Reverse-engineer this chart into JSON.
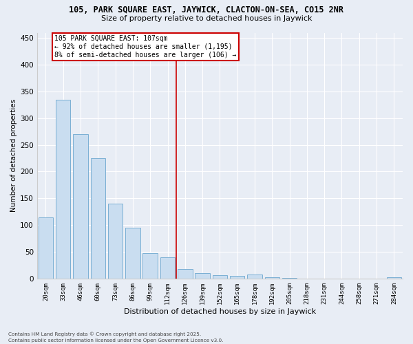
{
  "title1": "105, PARK SQUARE EAST, JAYWICK, CLACTON-ON-SEA, CO15 2NR",
  "title2": "Size of property relative to detached houses in Jaywick",
  "xlabel": "Distribution of detached houses by size in Jaywick",
  "ylabel": "Number of detached properties",
  "categories": [
    "20sqm",
    "33sqm",
    "46sqm",
    "60sqm",
    "73sqm",
    "86sqm",
    "99sqm",
    "112sqm",
    "126sqm",
    "139sqm",
    "152sqm",
    "165sqm",
    "178sqm",
    "192sqm",
    "205sqm",
    "218sqm",
    "231sqm",
    "244sqm",
    "258sqm",
    "271sqm",
    "284sqm"
  ],
  "values": [
    115,
    335,
    270,
    225,
    140,
    95,
    47,
    40,
    18,
    10,
    6,
    5,
    7,
    2,
    1,
    0,
    0,
    0,
    0,
    0,
    3
  ],
  "bar_color": "#c9ddf0",
  "bar_edge_color": "#7aafd4",
  "background_color": "#e8edf5",
  "grid_color": "#ffffff",
  "vline_x": 7.5,
  "vline_color": "#cc0000",
  "annotation_title": "105 PARK SQUARE EAST: 107sqm",
  "annotation_line1": "← 92% of detached houses are smaller (1,195)",
  "annotation_line2": "8% of semi-detached houses are larger (106) →",
  "annotation_box_edge_color": "#cc0000",
  "ylim": [
    0,
    460
  ],
  "yticks": [
    0,
    50,
    100,
    150,
    200,
    250,
    300,
    350,
    400,
    450
  ],
  "footnote1": "Contains HM Land Registry data © Crown copyright and database right 2025.",
  "footnote2": "Contains public sector information licensed under the Open Government Licence v3.0."
}
